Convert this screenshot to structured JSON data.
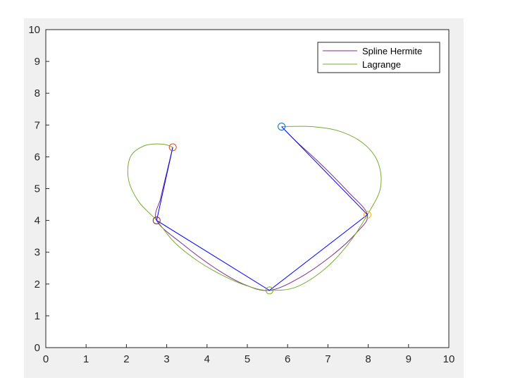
{
  "chart_data": {
    "type": "line",
    "title": "",
    "xlabel": "",
    "ylabel": "",
    "xlim": [
      0,
      10
    ],
    "ylim": [
      0,
      10
    ],
    "xticks": [
      "0",
      "1",
      "2",
      "3",
      "4",
      "5",
      "6",
      "7",
      "8",
      "9",
      "10"
    ],
    "yticks": [
      "0",
      "1",
      "2",
      "3",
      "4",
      "5",
      "6",
      "7",
      "8",
      "9",
      "10"
    ],
    "grid": false,
    "legend_position": "top-right",
    "legend": [
      "Spline Hermite",
      "Lagrange"
    ],
    "points": [
      {
        "x": 3.15,
        "y": 6.3,
        "color": "#d95319"
      },
      {
        "x": 2.75,
        "y": 4.0,
        "color": "#a2142f"
      },
      {
        "x": 5.55,
        "y": 1.8,
        "color": "#77ac30"
      },
      {
        "x": 7.98,
        "y": 4.18,
        "color": "#edb120"
      },
      {
        "x": 5.85,
        "y": 6.95,
        "color": "#0072bd"
      }
    ],
    "series": [
      {
        "name": "Spline Hermite",
        "color": "#7e2f8e",
        "x": [
          3.15,
          3.0,
          2.85,
          2.75,
          3.4,
          4.2,
          4.9,
          5.55,
          6.3,
          7.1,
          7.7,
          7.98,
          7.5,
          6.8,
          6.2,
          5.85
        ],
        "y": [
          6.3,
          5.5,
          4.7,
          4.0,
          3.25,
          2.5,
          2.0,
          1.8,
          2.2,
          2.9,
          3.6,
          4.18,
          4.9,
          5.8,
          6.5,
          6.95
        ]
      },
      {
        "name": "Lagrange",
        "color": "#77ac30",
        "x": [
          3.15,
          2.9,
          2.45,
          2.1,
          2.05,
          2.3,
          2.75,
          3.2,
          3.8,
          4.5,
          5.1,
          5.55,
          6.2,
          6.9,
          7.5,
          7.98,
          8.3,
          8.25,
          7.9,
          7.3,
          6.6,
          5.85
        ],
        "y": [
          6.3,
          6.4,
          6.35,
          6.0,
          5.3,
          4.6,
          4.0,
          3.3,
          2.7,
          2.2,
          1.9,
          1.8,
          1.9,
          2.45,
          3.25,
          4.18,
          5.0,
          5.8,
          6.4,
          6.8,
          6.95,
          6.95
        ]
      },
      {
        "name": "",
        "color": "#0000ff",
        "x": [
          3.15,
          2.75,
          5.55,
          7.98,
          5.85
        ],
        "y": [
          6.3,
          4.0,
          1.8,
          4.18,
          6.95
        ]
      }
    ]
  }
}
